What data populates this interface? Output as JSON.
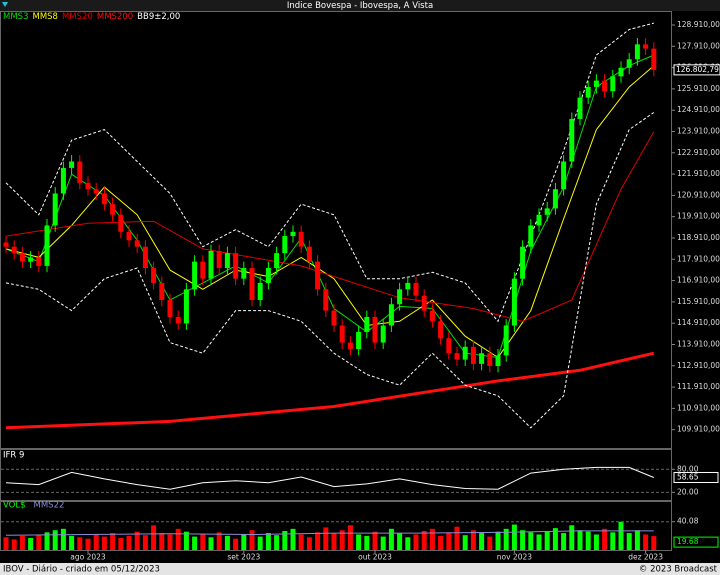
{
  "header": {
    "title": "Indice Bovespa - Ibovespa, A Vista"
  },
  "footer": {
    "left": "IBOV - Diário - criado em 05/12/2023",
    "right": "© 2023 Broadcast"
  },
  "chart_data": [
    {
      "type": "candlestick",
      "categories": [
        null,
        null,
        null,
        null,
        null,
        null,
        null,
        null,
        null,
        null,
        "ago 2023",
        null,
        null,
        null,
        null,
        null,
        null,
        null,
        null,
        null,
        null,
        null,
        null,
        null,
        null,
        null,
        null,
        null,
        null,
        "set 2023",
        null,
        null,
        null,
        null,
        null,
        null,
        null,
        null,
        null,
        null,
        null,
        null,
        null,
        null,
        null,
        "out 2023",
        null,
        null,
        null,
        null,
        null,
        null,
        null,
        null,
        null,
        null,
        null,
        null,
        null,
        null,
        null,
        null,
        "nov 2023",
        null,
        null,
        null,
        null,
        null,
        null,
        null,
        null,
        null,
        null,
        null,
        null,
        null,
        null,
        null,
        "dez 2023",
        null
      ],
      "open": [
        118700,
        118500,
        118200,
        117800,
        118000,
        117600,
        119500,
        121000,
        122200,
        122500,
        121500,
        121200,
        121000,
        120500,
        120000,
        119200,
        118800,
        118500,
        117500,
        116800,
        116000,
        115200,
        114900,
        116500,
        117800,
        117000,
        118300,
        117500,
        118200,
        117000,
        117500,
        116000,
        116800,
        117500,
        118200,
        119000,
        119200,
        118500,
        117800,
        116500,
        115500,
        114800,
        114000,
        113700,
        114500,
        115200,
        114000,
        114800,
        115800,
        116500,
        116800,
        116200,
        115500,
        115000,
        114200,
        113500,
        113200,
        113800,
        113000,
        113500,
        112900,
        113400,
        114800,
        117000,
        118500,
        119500,
        120000,
        120300,
        121200,
        122500,
        124500,
        125500,
        126000,
        126300,
        125800,
        126500,
        126900,
        127300,
        128000,
        127800
      ],
      "high": [
        119000,
        118800,
        118500,
        118300,
        118300,
        119800,
        121300,
        122500,
        122800,
        122800,
        121800,
        121500,
        121300,
        120800,
        120300,
        119500,
        119100,
        118800,
        117800,
        117100,
        116300,
        115500,
        116800,
        118100,
        118100,
        118600,
        118600,
        118500,
        118500,
        117800,
        117800,
        117100,
        117800,
        118500,
        119300,
        119500,
        119500,
        118800,
        118100,
        116800,
        115800,
        115100,
        114300,
        114800,
        115500,
        115500,
        115100,
        116100,
        116800,
        117100,
        117100,
        116500,
        115800,
        115300,
        114500,
        113800,
        114100,
        114100,
        113800,
        113800,
        113700,
        115100,
        117300,
        118800,
        119800,
        120300,
        120600,
        121500,
        122800,
        124800,
        125800,
        126300,
        126600,
        126600,
        126800,
        127200,
        127600,
        128300,
        128300,
        128100
      ],
      "low": [
        118200,
        117900,
        117500,
        117500,
        117300,
        117300,
        119200,
        120700,
        121900,
        121200,
        120900,
        120700,
        120200,
        119700,
        118900,
        118500,
        118200,
        117200,
        116500,
        115700,
        114900,
        114600,
        114600,
        116200,
        116700,
        116700,
        117200,
        117200,
        116700,
        116700,
        115700,
        115700,
        116500,
        117200,
        117900,
        118700,
        118200,
        117500,
        116200,
        115200,
        114500,
        113700,
        113400,
        113400,
        114200,
        113700,
        113700,
        114500,
        115500,
        116200,
        115900,
        115200,
        114700,
        113900,
        113200,
        112900,
        112900,
        112700,
        112700,
        112600,
        112600,
        113100,
        114500,
        116700,
        118200,
        119200,
        119700,
        120000,
        120900,
        122200,
        124200,
        125200,
        125700,
        125500,
        125500,
        126200,
        126600,
        127000,
        127500,
        126500
      ],
      "close": [
        118500,
        118200,
        117800,
        118000,
        117600,
        119500,
        121000,
        122200,
        122500,
        121500,
        121200,
        121000,
        120500,
        120000,
        119200,
        118800,
        118500,
        117500,
        116800,
        116000,
        115200,
        114900,
        116500,
        117800,
        117000,
        118300,
        117500,
        118200,
        117000,
        117500,
        116000,
        116800,
        117500,
        118200,
        119000,
        119200,
        118500,
        117800,
        116500,
        115500,
        114800,
        114000,
        113700,
        114500,
        115200,
        114000,
        114800,
        115800,
        116500,
        116800,
        116200,
        115500,
        115000,
        114200,
        113500,
        113200,
        113800,
        113000,
        113500,
        112900,
        113400,
        114800,
        117000,
        118500,
        119500,
        120000,
        120300,
        121200,
        122500,
        124500,
        125500,
        126000,
        126300,
        125800,
        126500,
        126900,
        127300,
        128000,
        127800,
        126802.79
      ],
      "last_label": "126.802,79",
      "up_color": "#00ff00",
      "down_color": "#ff0000",
      "series": [
        {
          "name": "MMS3",
          "color": "#00e000",
          "x": [
            0,
            4,
            8,
            12,
            16,
            20,
            24,
            28,
            32,
            36,
            40,
            44,
            48,
            52,
            56,
            60,
            64,
            68,
            72,
            76,
            79
          ],
          "values": [
            118400,
            117800,
            121900,
            120900,
            118800,
            116000,
            116800,
            117600,
            116800,
            118900,
            115600,
            114500,
            115700,
            115600,
            113500,
            113300,
            118300,
            121300,
            126000,
            127000,
            127500
          ]
        },
        {
          "name": "MMS8",
          "color": "#ffff00",
          "x": [
            0,
            4,
            8,
            12,
            16,
            20,
            24,
            28,
            32,
            36,
            40,
            44,
            48,
            52,
            56,
            60,
            64,
            68,
            72,
            76,
            79
          ],
          "values": [
            118400,
            118000,
            119500,
            121300,
            120000,
            117400,
            116500,
            117400,
            117100,
            118000,
            117000,
            114800,
            115000,
            116000,
            114300,
            113300,
            115500,
            119800,
            124000,
            126000,
            127000
          ]
        },
        {
          "name": "MMS20",
          "color": "#e00000",
          "x": [
            0,
            10,
            18,
            24,
            36,
            48,
            57,
            63,
            69,
            75,
            79
          ],
          "values": [
            119000,
            119600,
            119700,
            118400,
            117600,
            116100,
            115600,
            115000,
            116000,
            121200,
            123900
          ]
        },
        {
          "name": "MMS200",
          "color": "#ff1010",
          "width": 3,
          "x": [
            0,
            20,
            40,
            60,
            70,
            79
          ],
          "values": [
            110000,
            110300,
            111000,
            112200,
            112700,
            113500
          ]
        },
        {
          "name": "BB9±2,00",
          "color": "#ffffff",
          "dash": true,
          "x": [
            0,
            4,
            8,
            12,
            16,
            20,
            24,
            28,
            32,
            36,
            40,
            44,
            48,
            52,
            56,
            60,
            64,
            68,
            72,
            76,
            79
          ],
          "values": [
            121500,
            120000,
            123500,
            124000,
            122500,
            121000,
            118500,
            119300,
            118500,
            120500,
            120000,
            117000,
            117000,
            117300,
            116800,
            115000,
            119000,
            123000,
            127500,
            128700,
            129000
          ],
          "lower": [
            116800,
            116500,
            115500,
            117000,
            117500,
            114000,
            113500,
            115500,
            115500,
            115000,
            113500,
            112500,
            112000,
            113500,
            112000,
            111500,
            110000,
            111500,
            120500,
            124000,
            124800
          ]
        }
      ],
      "ylim": [
        109050,
        129520
      ],
      "yticks": [
        {
          "value": 109910,
          "label": "109.910,00"
        },
        {
          "value": 110910,
          "label": "110.910,00"
        },
        {
          "value": 111910,
          "label": "111.910,00"
        },
        {
          "value": 112910,
          "label": "112.910,00"
        },
        {
          "value": 113910,
          "label": "113.910,00"
        },
        {
          "value": 114910,
          "label": "114.910,00"
        },
        {
          "value": 115910,
          "label": "115.910,00"
        },
        {
          "value": 116910,
          "label": "116.910,00"
        },
        {
          "value": 117910,
          "label": "117.910,00"
        },
        {
          "value": 118910,
          "label": "118.910,00"
        },
        {
          "value": 119910,
          "label": "119.910,00"
        },
        {
          "value": 120910,
          "label": "120.910,00"
        },
        {
          "value": 121910,
          "label": "121.910,00"
        },
        {
          "value": 122910,
          "label": "122.910,00"
        },
        {
          "value": 123910,
          "label": "123.910,00"
        },
        {
          "value": 124910,
          "label": "124.910,00"
        },
        {
          "value": 125910,
          "label": "125.910,00"
        },
        {
          "value": 126910,
          "label": "126.910,00"
        },
        {
          "value": 127910,
          "label": "127.910,00"
        },
        {
          "value": 128910,
          "label": "128.910,00"
        }
      ]
    },
    {
      "type": "line",
      "title": "IFR 9",
      "color": "#ffffff",
      "x": [
        0,
        4,
        8,
        12,
        16,
        20,
        24,
        28,
        32,
        36,
        40,
        44,
        48,
        52,
        56,
        60,
        64,
        68,
        72,
        76,
        79
      ],
      "values": [
        45,
        40,
        72,
        55,
        40,
        28,
        45,
        50,
        45,
        60,
        35,
        42,
        55,
        40,
        30,
        28,
        70,
        80,
        85,
        85,
        58.65
      ],
      "ylim": [
        0,
        125
      ],
      "yticks": [
        {
          "value": 80,
          "label": "80.00"
        },
        {
          "value": 20,
          "label": "20.00"
        }
      ],
      "grid": true
    },
    {
      "type": "bar",
      "title": "VOL$",
      "values": [
        18,
        15,
        20,
        17,
        22,
        25,
        28,
        30,
        20,
        18,
        16,
        22,
        19,
        24,
        17,
        20,
        26,
        21,
        35,
        24,
        22,
        30,
        26,
        19,
        23,
        18,
        25,
        20,
        16,
        22,
        28,
        19,
        24,
        21,
        27,
        30,
        22,
        18,
        25,
        32,
        24,
        28,
        35,
        22,
        20,
        26,
        19,
        30,
        24,
        18,
        22,
        27,
        30,
        20,
        25,
        33,
        21,
        28,
        24,
        19,
        26,
        30,
        36,
        28,
        25,
        22,
        27,
        31,
        24,
        35,
        28,
        26,
        22,
        30,
        25,
        40,
        24,
        28,
        22,
        19.68
      ],
      "series": [
        {
          "name": "MMS22",
          "color": "#8c8cd8",
          "x": [
            0,
            10,
            20,
            30,
            40,
            50,
            60,
            70,
            79
          ],
          "values": [
            21,
            22,
            23,
            22,
            24,
            24,
            25,
            27,
            27
          ]
        }
      ],
      "ylim": [
        0,
        68
      ],
      "yticks": [
        40.08
      ],
      "grid": true
    }
  ]
}
